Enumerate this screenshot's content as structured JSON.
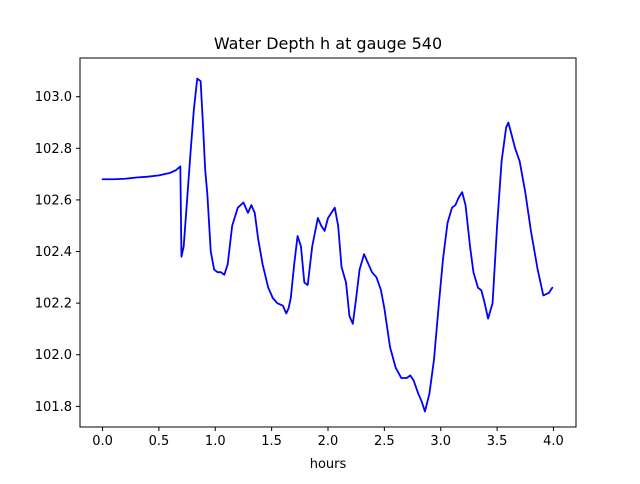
{
  "chart_data": {
    "type": "line",
    "title": "Water Depth h at gauge 540",
    "xlabel": "hours",
    "ylabel": "",
    "xlim": [
      -0.2,
      4.2
    ],
    "ylim": [
      101.72,
      103.15
    ],
    "xticks": [
      0.0,
      0.5,
      1.0,
      1.5,
      2.0,
      2.5,
      3.0,
      3.5,
      4.0
    ],
    "xtick_labels": [
      "0.0",
      "0.5",
      "1.0",
      "1.5",
      "2.0",
      "2.5",
      "3.0",
      "3.5",
      "4.0"
    ],
    "yticks": [
      101.8,
      102.0,
      102.2,
      102.4,
      102.6,
      102.8,
      103.0
    ],
    "ytick_labels": [
      "101.8",
      "102.0",
      "102.2",
      "102.4",
      "102.6",
      "102.8",
      "103.0"
    ],
    "grid": false,
    "legend": "none",
    "series": [
      {
        "color": "#0000ff",
        "x": [
          0.0,
          0.1,
          0.2,
          0.3,
          0.4,
          0.5,
          0.6,
          0.65,
          0.69,
          0.695,
          0.7,
          0.72,
          0.75,
          0.78,
          0.81,
          0.84,
          0.87,
          0.89,
          0.91,
          0.93,
          0.96,
          0.99,
          1.02,
          1.05,
          1.08,
          1.11,
          1.15,
          1.2,
          1.25,
          1.29,
          1.32,
          1.35,
          1.38,
          1.42,
          1.47,
          1.51,
          1.55,
          1.6,
          1.63,
          1.65,
          1.67,
          1.7,
          1.73,
          1.76,
          1.79,
          1.82,
          1.86,
          1.91,
          1.94,
          1.97,
          2.0,
          2.03,
          2.06,
          2.09,
          2.12,
          2.16,
          2.19,
          2.22,
          2.25,
          2.28,
          2.32,
          2.36,
          2.39,
          2.43,
          2.47,
          2.5,
          2.55,
          2.6,
          2.65,
          2.7,
          2.73,
          2.76,
          2.8,
          2.83,
          2.86,
          2.9,
          2.94,
          2.98,
          3.02,
          3.06,
          3.1,
          3.13,
          3.16,
          3.19,
          3.22,
          3.26,
          3.29,
          3.33,
          3.36,
          3.39,
          3.42,
          3.46,
          3.5,
          3.54,
          3.58,
          3.6,
          3.63,
          3.66,
          3.7,
          3.75,
          3.8,
          3.86,
          3.91,
          3.96,
          3.99
        ],
        "y": [
          102.68,
          102.68,
          102.682,
          102.687,
          102.69,
          102.695,
          102.705,
          102.715,
          102.73,
          102.55,
          102.38,
          102.42,
          102.6,
          102.78,
          102.95,
          103.07,
          103.06,
          102.9,
          102.72,
          102.62,
          102.4,
          102.33,
          102.32,
          102.32,
          102.31,
          102.35,
          102.5,
          102.57,
          102.59,
          102.55,
          102.58,
          102.55,
          102.45,
          102.35,
          102.26,
          102.22,
          102.2,
          102.19,
          102.16,
          102.18,
          102.22,
          102.35,
          102.46,
          102.42,
          102.28,
          102.27,
          102.42,
          102.53,
          102.5,
          102.48,
          102.53,
          102.55,
          102.57,
          102.5,
          102.34,
          102.28,
          102.15,
          102.12,
          102.22,
          102.33,
          102.39,
          102.35,
          102.32,
          102.3,
          102.25,
          102.18,
          102.03,
          101.95,
          101.91,
          101.91,
          101.92,
          101.9,
          101.85,
          101.82,
          101.78,
          101.85,
          101.98,
          102.18,
          102.37,
          102.51,
          102.57,
          102.58,
          102.61,
          102.63,
          102.58,
          102.42,
          102.32,
          102.26,
          102.25,
          102.2,
          102.14,
          102.2,
          102.5,
          102.75,
          102.88,
          102.9,
          102.85,
          102.8,
          102.75,
          102.63,
          102.48,
          102.33,
          102.23,
          102.24,
          102.26
        ]
      }
    ]
  }
}
